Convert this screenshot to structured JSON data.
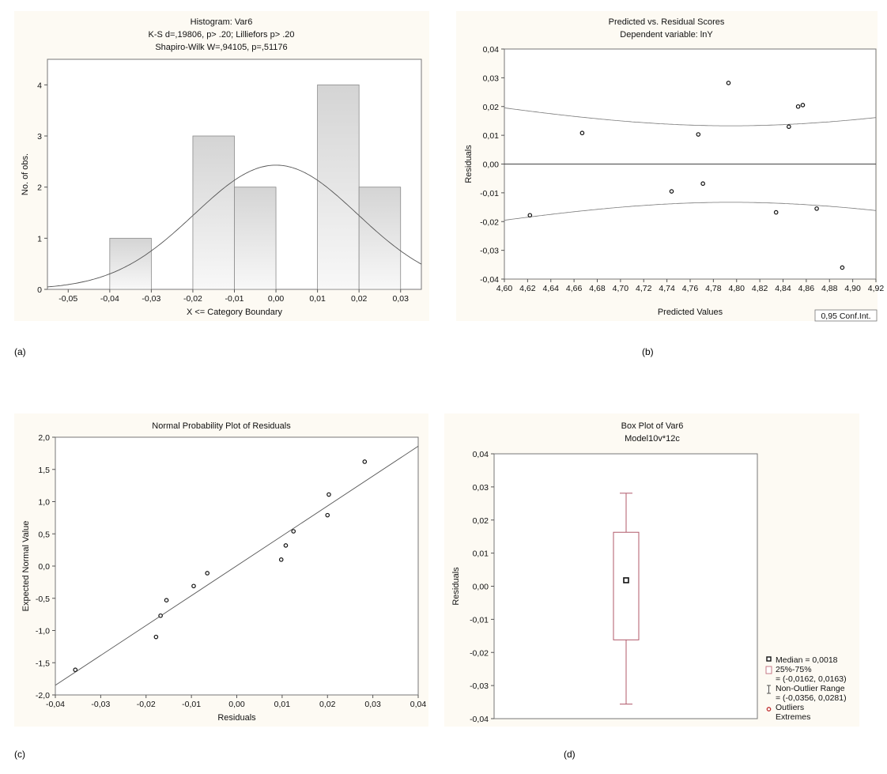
{
  "captions": [
    "(a)",
    "(b)",
    "(c)",
    "(d)"
  ],
  "chart_data": [
    {
      "type": "bar",
      "title": [
        "Histogram: Var6",
        "K-S d=,19806, p> .20; Lilliefors p> .20",
        "Shapiro-Wilk W=,94105, p=,51176"
      ],
      "xlabel": "X <= Category Boundary",
      "ylabel": "No. of obs.",
      "xlim": [
        -0.055,
        0.035
      ],
      "ylim": [
        0,
        4.5
      ],
      "xticks": [
        -0.05,
        -0.04,
        -0.03,
        -0.02,
        -0.01,
        0.0,
        0.01,
        0.02,
        0.03
      ],
      "xtick_labels": [
        "-0,05",
        "-0,04",
        "-0,03",
        "-0,02",
        "-0,01",
        "0,00",
        "0,01",
        "0,02",
        "0,03"
      ],
      "yticks": [
        0,
        1,
        2,
        3,
        4
      ],
      "ytick_labels": [
        "0",
        "1",
        "2",
        "3",
        "4"
      ],
      "bins": [
        {
          "from": -0.04,
          "to": -0.03,
          "count": 1
        },
        {
          "from": -0.03,
          "to": -0.02,
          "count": 0
        },
        {
          "from": -0.02,
          "to": -0.01,
          "count": 3
        },
        {
          "from": -0.01,
          "to": 0.0,
          "count": 2
        },
        {
          "from": 0.0,
          "to": 0.01,
          "count": 0
        },
        {
          "from": 0.01,
          "to": 0.02,
          "count": 4
        },
        {
          "from": 0.02,
          "to": 0.03,
          "count": 2
        }
      ],
      "normal_curve": {
        "mean": 0.0,
        "peak": 2.43,
        "sd": 0.0196
      },
      "grid": false
    },
    {
      "type": "scatter",
      "title": [
        "Predicted vs. Residual Scores",
        "Dependent variable: lnY"
      ],
      "xlabel": "Predicted Values",
      "ylabel": "Residuals",
      "xlim": [
        4.6,
        4.92
      ],
      "ylim": [
        -0.04,
        0.04
      ],
      "xticks": [
        4.6,
        4.62,
        4.64,
        4.66,
        4.68,
        4.7,
        4.72,
        4.74,
        4.76,
        4.78,
        4.8,
        4.82,
        4.84,
        4.86,
        4.88,
        4.9,
        4.92
      ],
      "xtick_labels": [
        "4,60",
        "4,62",
        "4,64",
        "4,66",
        "4,68",
        "4,70",
        "4,72",
        "4,74",
        "4,76",
        "4,78",
        "4,80",
        "4,82",
        "4,84",
        "4,86",
        "4,88",
        "4,90",
        "4,92"
      ],
      "yticks": [
        -0.04,
        -0.03,
        -0.02,
        -0.01,
        0.0,
        0.01,
        0.02,
        0.03,
        0.04
      ],
      "ytick_labels": [
        "-0,04",
        "-0,03",
        "-0,02",
        "-0,01",
        "0,00",
        "0,01",
        "0,02",
        "0,03",
        "0,04"
      ],
      "points": [
        [
          4.622,
          -0.0178
        ],
        [
          4.667,
          0.0108
        ],
        [
          4.744,
          -0.0095
        ],
        [
          4.767,
          0.0103
        ],
        [
          4.771,
          -0.0068
        ],
        [
          4.793,
          0.0282
        ],
        [
          4.834,
          -0.0168
        ],
        [
          4.845,
          0.013
        ],
        [
          4.853,
          0.02
        ],
        [
          4.857,
          0.0205
        ],
        [
          4.869,
          -0.0155
        ],
        [
          4.891,
          -0.036
        ]
      ],
      "confidence_band": {
        "center": 4.795,
        "min_width": 0.0133,
        "a": 0.000855,
        "b": 0.63
      },
      "legend": "0,95 Conf.Int.",
      "legend_position": "bottom-right",
      "grid": false
    },
    {
      "type": "scatter",
      "title": [
        "Normal Probability Plot of Residuals"
      ],
      "xlabel": "Residuals",
      "ylabel": "Expected Normal Value",
      "xlim": [
        -0.04,
        0.04
      ],
      "ylim": [
        -2.0,
        2.0
      ],
      "xticks": [
        -0.04,
        -0.03,
        -0.02,
        -0.01,
        0.0,
        0.01,
        0.02,
        0.03,
        0.04
      ],
      "xtick_labels": [
        "-0,04",
        "-0,03",
        "-0,02",
        "-0,01",
        "0,00",
        "0,01",
        "0,02",
        "0,03",
        "0,04"
      ],
      "yticks": [
        -2.0,
        -1.5,
        -1.0,
        -0.5,
        0.0,
        0.5,
        1.0,
        1.5,
        2.0
      ],
      "ytick_labels": [
        "-2,0",
        "-1,5",
        "-1,0",
        "-0,5",
        "0,0",
        "0,5",
        "1,0",
        "1,5",
        "2,0"
      ],
      "points": [
        [
          -0.0356,
          -1.61
        ],
        [
          -0.0178,
          -1.1
        ],
        [
          -0.0168,
          -0.77
        ],
        [
          -0.0155,
          -0.53
        ],
        [
          -0.0095,
          -0.31
        ],
        [
          -0.0065,
          -0.11
        ],
        [
          0.0098,
          0.1
        ],
        [
          0.0108,
          0.32
        ],
        [
          0.0125,
          0.54
        ],
        [
          0.02,
          0.79
        ],
        [
          0.0203,
          1.11
        ],
        [
          0.0282,
          1.62
        ]
      ],
      "fit_line": [
        [
          -0.04,
          -1.85
        ],
        [
          0.04,
          1.86
        ]
      ],
      "grid": false
    },
    {
      "type": "box",
      "title": [
        "Box Plot of Var6",
        "Model10v*12c"
      ],
      "ylabel": "Residuals",
      "ylim": [
        -0.04,
        0.04
      ],
      "yticks": [
        -0.04,
        -0.03,
        -0.02,
        -0.01,
        0.0,
        0.01,
        0.02,
        0.03,
        0.04
      ],
      "ytick_labels": [
        "-0,04",
        "-0,03",
        "-0,02",
        "-0,01",
        "0,00",
        "0,01",
        "0,02",
        "0,03",
        "0,04"
      ],
      "median": 0.0018,
      "q1": -0.0162,
      "q3": 0.0163,
      "whisker_low": -0.0356,
      "whisker_high": 0.0281,
      "legend": [
        "Median = 0,0018",
        "25%-75%",
        "= (-0,0162, 0,0163)",
        "Non-Outlier Range",
        "= (-0,0356, 0,0281)",
        "Outliers",
        "Extremes"
      ],
      "legend_position": "bottom-right",
      "grid": false
    }
  ]
}
